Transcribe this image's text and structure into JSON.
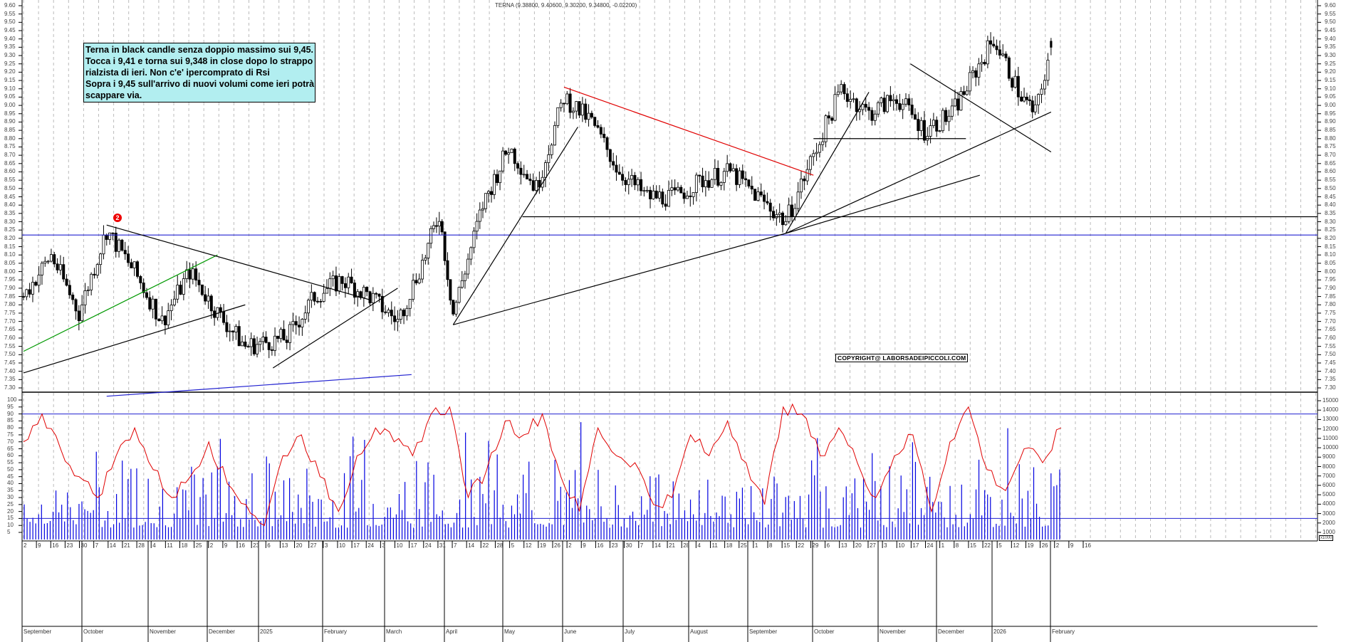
{
  "header": {
    "title": "TERNA (9.38800, 9.40600, 9.30200, 9.34800, -0.02200)"
  },
  "annotation": {
    "lines": [
      "Terna in black candle senza doppio massimo sui 9,45.",
      "Tocca i 9,41 e torna sui 9,348 in close dopo lo strappo",
      "rialzista di ieri. Non c'e' ipercomprato di Rsi",
      "Sopra i 9,45 sull'arrivo di nuovi volumi come ieri potrà",
      "scappare via."
    ]
  },
  "copyright": "COPYRIGHT@ LABORSADEIPICCOLI.COM",
  "marker": {
    "label": "2"
  },
  "colors": {
    "candle": "#000000",
    "rsi": "#e00000",
    "volume": "#0000e0",
    "support_line": "#2020d0",
    "resistance_red": "#e00000",
    "trend_green": "#009900",
    "annotation_bg": "#b2eef0",
    "grid": "#bbbbbb"
  },
  "chart_data": [
    {
      "type": "candlestick",
      "title": "TERNA (9.38800, 9.40600, 9.30200, 9.34800, -0.02200)",
      "last_bar": {
        "open": 9.388,
        "high": 9.406,
        "low": 9.302,
        "close": 9.348,
        "change": -0.022
      },
      "ylim": [
        7.25,
        9.62
      ],
      "yticks": [
        7.3,
        7.35,
        7.4,
        7.45,
        7.5,
        7.55,
        7.6,
        7.65,
        7.7,
        7.75,
        7.8,
        7.85,
        7.9,
        7.95,
        8.0,
        8.05,
        8.1,
        8.15,
        8.2,
        8.25,
        8.3,
        8.35,
        8.4,
        8.45,
        8.5,
        8.55,
        8.6,
        8.65,
        8.7,
        8.75,
        8.8,
        8.85,
        8.9,
        8.95,
        9.0,
        9.05,
        9.1,
        9.15,
        9.2,
        9.25,
        9.3,
        9.35,
        9.4,
        9.45,
        9.5,
        9.55,
        9.6
      ],
      "grid": "vertical dashed weekly",
      "x_period": "September 2024 – February 2026 (daily)",
      "approx_weekly_closes": [
        {
          "date": "2024-09-02",
          "close": 7.85
        },
        {
          "date": "2024-09-16",
          "close": 8.1
        },
        {
          "date": "2024-09-30",
          "close": 7.75
        },
        {
          "date": "2024-10-14",
          "close": 8.25
        },
        {
          "date": "2024-10-28",
          "close": 8.0
        },
        {
          "date": "2024-11-11",
          "close": 7.7
        },
        {
          "date": "2024-11-25",
          "close": 8.0
        },
        {
          "date": "2024-12-09",
          "close": 7.75
        },
        {
          "date": "2024-12-23",
          "close": 7.55
        },
        {
          "date": "2025-01-13",
          "close": 7.6
        },
        {
          "date": "2025-01-27",
          "close": 7.85
        },
        {
          "date": "2025-02-10",
          "close": 7.95
        },
        {
          "date": "2025-02-24",
          "close": 7.85
        },
        {
          "date": "2025-03-10",
          "close": 7.7
        },
        {
          "date": "2025-03-24",
          "close": 8.1
        },
        {
          "date": "2025-03-31",
          "close": 8.35
        },
        {
          "date": "2025-04-07",
          "close": 7.75
        },
        {
          "date": "2025-04-22",
          "close": 8.4
        },
        {
          "date": "2025-05-05",
          "close": 8.75
        },
        {
          "date": "2025-05-19",
          "close": 8.5
        },
        {
          "date": "2025-06-02",
          "close": 9.05
        },
        {
          "date": "2025-06-16",
          "close": 8.9
        },
        {
          "date": "2025-06-30",
          "close": 8.6
        },
        {
          "date": "2025-07-14",
          "close": 8.45
        },
        {
          "date": "2025-07-28",
          "close": 8.45
        },
        {
          "date": "2025-08-11",
          "close": 8.55
        },
        {
          "date": "2025-08-25",
          "close": 8.6
        },
        {
          "date": "2025-09-08",
          "close": 8.45
        },
        {
          "date": "2025-09-22",
          "close": 8.3
        },
        {
          "date": "2025-10-06",
          "close": 8.7
        },
        {
          "date": "2025-10-20",
          "close": 9.1
        },
        {
          "date": "2025-11-03",
          "close": 8.95
        },
        {
          "date": "2025-11-17",
          "close": 9.05
        },
        {
          "date": "2025-12-01",
          "close": 8.85
        },
        {
          "date": "2025-12-15",
          "close": 8.95
        },
        {
          "date": "2026-01-05",
          "close": 9.4
        },
        {
          "date": "2026-01-19",
          "close": 9.05
        },
        {
          "date": "2026-01-26",
          "close": 8.95
        },
        {
          "date": "2026-02-03",
          "close": 9.35
        }
      ],
      "horizontal_lines": [
        {
          "value": 8.22,
          "color": "#2020d0"
        },
        {
          "value": 8.33,
          "color": "#000000",
          "from": "2025-05-12"
        },
        {
          "value": 8.8,
          "color": "#000000",
          "from": "2025-10-06",
          "to": "2025-12-22"
        }
      ],
      "trendlines": [
        {
          "color": "#000000",
          "from": [
            "2024-09-02",
            7.39
          ],
          "to": [
            "2024-12-23",
            7.8
          ]
        },
        {
          "color": "#009900",
          "from": [
            "2024-09-02",
            7.52
          ],
          "to": [
            "2024-12-09",
            8.1
          ]
        },
        {
          "color": "#000000",
          "from": [
            "2024-10-14",
            8.28
          ],
          "to": [
            "2025-02-24",
            7.83
          ]
        },
        {
          "color": "#000000",
          "from": [
            "2025-01-06",
            7.42
          ],
          "to": [
            "2025-03-10",
            7.9
          ]
        },
        {
          "color": "#2020d0",
          "from": [
            "2024-10-14",
            7.25
          ],
          "to": [
            "2025-03-17",
            7.38
          ]
        },
        {
          "color": "#000000",
          "from": [
            "2025-04-07",
            7.68
          ],
          "to": [
            "2025-09-22",
            8.23
          ]
        },
        {
          "color": "#000000",
          "from": [
            "2025-04-07",
            7.68
          ],
          "to": [
            "2025-06-09",
            8.87
          ]
        },
        {
          "color": "#e00000",
          "from": [
            "2025-06-02",
            9.11
          ],
          "to": [
            "2025-10-06",
            8.58
          ]
        },
        {
          "color": "#000000",
          "from": [
            "2025-09-22",
            8.23
          ],
          "to": [
            "2025-11-03",
            9.08
          ]
        },
        {
          "color": "#000000",
          "from": [
            "2025-09-22",
            8.23
          ],
          "to": [
            "2026-02-03",
            8.96
          ]
        },
        {
          "color": "#000000",
          "from": [
            "2025-09-22",
            8.23
          ],
          "to": [
            "2025-12-29",
            8.58
          ]
        },
        {
          "color": "#000000",
          "from": [
            "2025-11-24",
            9.25
          ],
          "to": [
            "2026-02-03",
            8.72
          ]
        }
      ],
      "annotations": [
        "2"
      ]
    },
    {
      "type": "line",
      "title": "RSI",
      "ylim": [
        0,
        100
      ],
      "yticks_left": [
        5,
        10,
        15,
        20,
        25,
        30,
        35,
        40,
        45,
        50,
        55,
        60,
        65,
        70,
        75,
        80,
        85,
        90,
        95,
        100
      ],
      "reference_lines": [
        90,
        15
      ],
      "series": [
        {
          "name": "RSI",
          "color": "#e00000",
          "approx_values": [
            70,
            90,
            65,
            45,
            30,
            60,
            80,
            50,
            30,
            45,
            70,
            40,
            25,
            10,
            60,
            75,
            45,
            20,
            60,
            80,
            70,
            60,
            90,
            95,
            30,
            50,
            85,
            75,
            90,
            45,
            20,
            80,
            60,
            55,
            25,
            30,
            75,
            60,
            85,
            55,
            25,
            95,
            90,
            60,
            80,
            55,
            30,
            60,
            75,
            20,
            70,
            95,
            50,
            35,
            65,
            55,
            80
          ]
        }
      ]
    },
    {
      "type": "bar",
      "title": "Volume (x1000)",
      "yticks_right": [
        1000,
        2000,
        3000,
        4000,
        5000,
        6000,
        7000,
        8000,
        9000,
        10000,
        11000,
        12000,
        13000,
        14000,
        15000
      ],
      "unit": "x1000",
      "series": [
        {
          "name": "Volume",
          "color": "#0000e0"
        }
      ]
    }
  ],
  "axes": {
    "price_ticks": [
      "9.60",
      "9.55",
      "9.50",
      "9.45",
      "9.40",
      "9.35",
      "9.30",
      "9.25",
      "9.20",
      "9.15",
      "9.10",
      "9.05",
      "9.00",
      "8.95",
      "8.90",
      "8.85",
      "8.80",
      "8.75",
      "8.70",
      "8.65",
      "8.60",
      "8.55",
      "8.50",
      "8.45",
      "8.40",
      "8.35",
      "8.30",
      "8.25",
      "8.20",
      "8.15",
      "8.10",
      "8.05",
      "8.00",
      "7.95",
      "7.90",
      "7.85",
      "7.80",
      "7.75",
      "7.70",
      "7.65",
      "7.60",
      "7.55",
      "7.50",
      "7.45",
      "7.40",
      "7.35",
      "7.30"
    ],
    "rsi_ticks": [
      "100",
      "95",
      "90",
      "85",
      "80",
      "75",
      "70",
      "65",
      "60",
      "55",
      "50",
      "45",
      "40",
      "35",
      "30",
      "25",
      "20",
      "15",
      "10",
      "5"
    ],
    "vol_ticks": [
      "15000",
      "14000",
      "13000",
      "12000",
      "11000",
      "10000",
      "9000",
      "8000",
      "7000",
      "6000",
      "5000",
      "4000",
      "3000",
      "2000",
      "1000"
    ],
    "vol_unit": "x1000",
    "day_ticks": [
      "2",
      "9",
      "16",
      "23",
      "30",
      "7",
      "14",
      "21",
      "28",
      "4",
      "11",
      "18",
      "25",
      "2",
      "9",
      "16",
      "23",
      "6",
      "13",
      "20",
      "27",
      "3",
      "10",
      "17",
      "24",
      "3",
      "10",
      "17",
      "24",
      "31",
      "7",
      "14",
      "22",
      "28",
      "5",
      "12",
      "19",
      "26",
      "2",
      "9",
      "16",
      "23",
      "30",
      "7",
      "14",
      "21",
      "28",
      "4",
      "11",
      "18",
      "25",
      "1",
      "8",
      "15",
      "22",
      "29",
      "6",
      "13",
      "20",
      "27",
      "3",
      "10",
      "17",
      "24",
      "1",
      "8",
      "15",
      "22",
      "5",
      "12",
      "19",
      "26",
      "2",
      "9",
      "16"
    ],
    "months": [
      {
        "label": "September",
        "x": 33
      },
      {
        "label": "October",
        "x": 117
      },
      {
        "label": "November",
        "x": 210
      },
      {
        "label": "December",
        "x": 293
      },
      {
        "label": "2025",
        "x": 365
      },
      {
        "label": "February",
        "x": 455
      },
      {
        "label": "March",
        "x": 542
      },
      {
        "label": "April",
        "x": 626
      },
      {
        "label": "May",
        "x": 708
      },
      {
        "label": "June",
        "x": 792
      },
      {
        "label": "July",
        "x": 877
      },
      {
        "label": "August",
        "x": 969
      },
      {
        "label": "September",
        "x": 1052
      },
      {
        "label": "October",
        "x": 1143
      },
      {
        "label": "November",
        "x": 1235
      },
      {
        "label": "December",
        "x": 1317
      },
      {
        "label": "2026",
        "x": 1395
      },
      {
        "label": "February",
        "x": 1477
      }
    ]
  }
}
